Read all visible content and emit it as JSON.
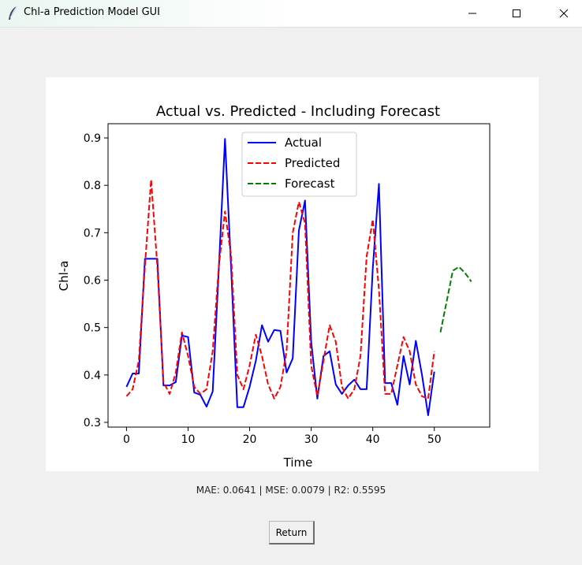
{
  "window": {
    "title": "Chl-a Prediction Model GUI",
    "icon": "feather-icon",
    "controls": [
      "minimize-icon",
      "maximize-icon",
      "close-icon"
    ]
  },
  "chart_data": {
    "type": "line",
    "title": "Actual vs. Predicted - Including Forecast",
    "xlabel": "Time",
    "ylabel": "Chl-a",
    "xlim": [
      -3,
      59
    ],
    "ylim": [
      0.29,
      0.93
    ],
    "x_ticks": [
      0,
      10,
      20,
      30,
      40,
      50
    ],
    "y_ticks": [
      0.3,
      0.4,
      0.5,
      0.6,
      0.7,
      0.8,
      0.9
    ],
    "grid": false,
    "legend_position": "top-center",
    "series": [
      {
        "name": "Actual",
        "color": "#0000ff",
        "style": "solid",
        "x": [
          0,
          1,
          2,
          3,
          4,
          5,
          6,
          7,
          8,
          9,
          10,
          11,
          12,
          13,
          14,
          15,
          16,
          17,
          18,
          19,
          20,
          21,
          22,
          23,
          24,
          25,
          26,
          27,
          28,
          29,
          30,
          31,
          32,
          33,
          34,
          35,
          36,
          37,
          38,
          39,
          40,
          41,
          42,
          43,
          44,
          45,
          46,
          47,
          48,
          49,
          50
        ],
        "values": [
          0.375,
          0.403,
          0.403,
          0.645,
          0.645,
          0.645,
          0.378,
          0.378,
          0.385,
          0.483,
          0.48,
          0.363,
          0.358,
          0.333,
          0.365,
          0.625,
          0.898,
          0.625,
          0.332,
          0.332,
          0.375,
          0.43,
          0.505,
          0.47,
          0.495,
          0.493,
          0.405,
          0.435,
          0.705,
          0.768,
          0.47,
          0.35,
          0.44,
          0.45,
          0.38,
          0.36,
          0.378,
          0.39,
          0.37,
          0.37,
          0.625,
          0.803,
          0.383,
          0.383,
          0.337,
          0.44,
          0.38,
          0.472,
          0.4,
          0.315,
          0.407
        ]
      },
      {
        "name": "Predicted",
        "color": "#ff0000",
        "style": "dashed",
        "x": [
          0,
          1,
          2,
          3,
          4,
          5,
          6,
          7,
          8,
          9,
          10,
          11,
          12,
          13,
          14,
          15,
          16,
          17,
          18,
          19,
          20,
          21,
          22,
          23,
          24,
          25,
          26,
          27,
          28,
          29,
          30,
          31,
          32,
          33,
          34,
          35,
          36,
          37,
          38,
          39,
          40,
          41,
          42,
          43,
          44,
          45,
          46,
          47,
          48,
          49,
          50
        ],
        "values": [
          0.355,
          0.37,
          0.43,
          0.63,
          0.812,
          0.63,
          0.385,
          0.36,
          0.405,
          0.49,
          0.44,
          0.375,
          0.36,
          0.37,
          0.45,
          0.63,
          0.745,
          0.65,
          0.4,
          0.37,
          0.42,
          0.485,
          0.44,
          0.38,
          0.35,
          0.375,
          0.45,
          0.7,
          0.765,
          0.72,
          0.42,
          0.355,
          0.43,
          0.505,
          0.47,
          0.375,
          0.35,
          0.37,
          0.44,
          0.65,
          0.728,
          0.58,
          0.36,
          0.36,
          0.42,
          0.48,
          0.45,
          0.38,
          0.355,
          0.35,
          0.45
        ]
      },
      {
        "name": "Forecast",
        "color": "#008000",
        "style": "dashed",
        "x": [
          51,
          52,
          53,
          54,
          55,
          56
        ],
        "values": [
          0.49,
          0.555,
          0.62,
          0.628,
          0.615,
          0.597
        ]
      }
    ]
  },
  "metrics_text": "MAE: 0.0641 | MSE: 0.0079 | R2: 0.5595",
  "return_label": "Return"
}
